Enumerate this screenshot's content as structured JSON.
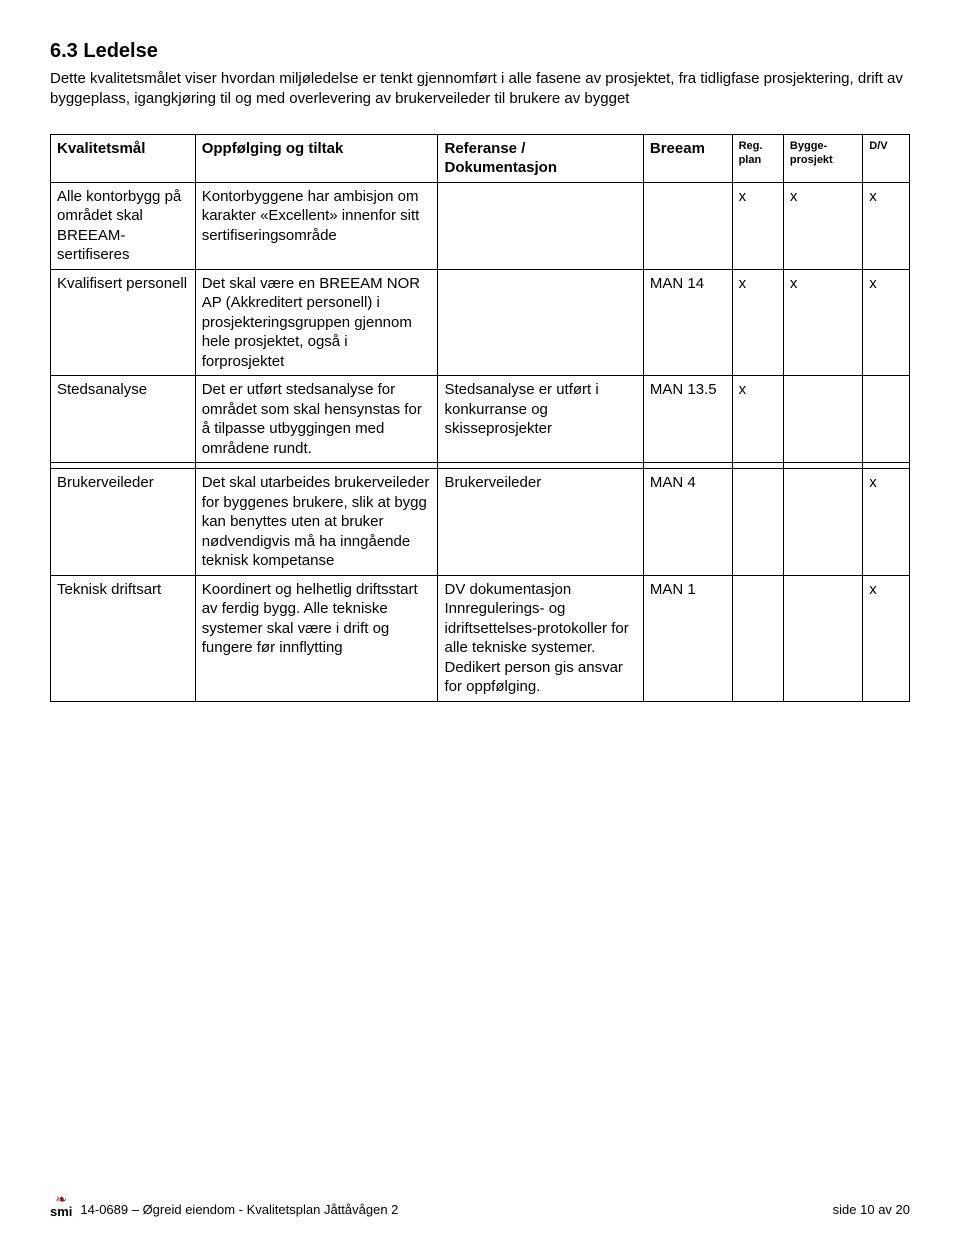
{
  "heading": "6.3   Ledelse",
  "intro": "Dette kvalitetsmålet viser hvordan miljøledelse er tenkt gjennomført i alle fasene av prosjektet, fra tidligfase prosjektering, drift av byggeplass, igangkjøring til og med overlevering av brukerveileder til brukere av bygget",
  "columns": {
    "c1": "Kvalitetsmål",
    "c2": "Oppfølging og tiltak",
    "c3": "Referanse / Dokumentasjon",
    "c4": "Breeam",
    "c5": "Reg. plan",
    "c6": "Bygge-prosjekt",
    "c7": "D/V"
  },
  "rows": [
    {
      "a": "Alle kontorbygg på området skal BREEAM-sertifiseres",
      "b": "Kontorbyggene har ambisjon om karakter «Excellent» innenfor sitt sertifiseringsområde",
      "c": "",
      "d": "",
      "e": "x",
      "f": "x",
      "g": "x"
    },
    {
      "a": "Kvalifisert personell",
      "b": "Det skal være en BREEAM NOR AP (Akkreditert personell) i prosjekteringsgruppen gjennom hele prosjektet, også i forprosjektet",
      "c": "",
      "d": "MAN 14",
      "e": "x",
      "f": "x",
      "g": "x"
    },
    {
      "a": "Stedsanalyse",
      "b": "Det er utført stedsanalyse for området som skal hensynstas for å tilpasse utbyggingen med områdene rundt.",
      "c": "Stedsanalyse er utført i konkurranse og skisseprosjekter",
      "d": "MAN 13.5",
      "e": "x",
      "f": "",
      "g": ""
    },
    {
      "a": "Brukerveileder",
      "b": "Det skal utarbeides brukerveileder for byggenes brukere, slik at bygg kan benyttes uten at bruker nødvendigvis må ha inngående teknisk kompetanse",
      "c": "Brukerveileder",
      "d": "MAN 4",
      "e": "",
      "f": "",
      "g": "x"
    },
    {
      "a": "Teknisk driftsart",
      "b": "Koordinert og helhetlig driftsstart av ferdig bygg. Alle tekniske systemer skal være i drift og fungere før innflytting",
      "c": "DV dokumentasjon Innregulerings- og idriftsettelses-protokoller for alle tekniske systemer. Dedikert person gis ansvar for oppfølging.",
      "d": "MAN 1",
      "e": "",
      "f": "",
      "g": "x"
    }
  ],
  "footer": {
    "logo_text": "smi",
    "left": "14-0689 – Øgreid eiendom -  Kvalitetsplan Jåttåvågen 2",
    "right": "side 10 av 20"
  }
}
